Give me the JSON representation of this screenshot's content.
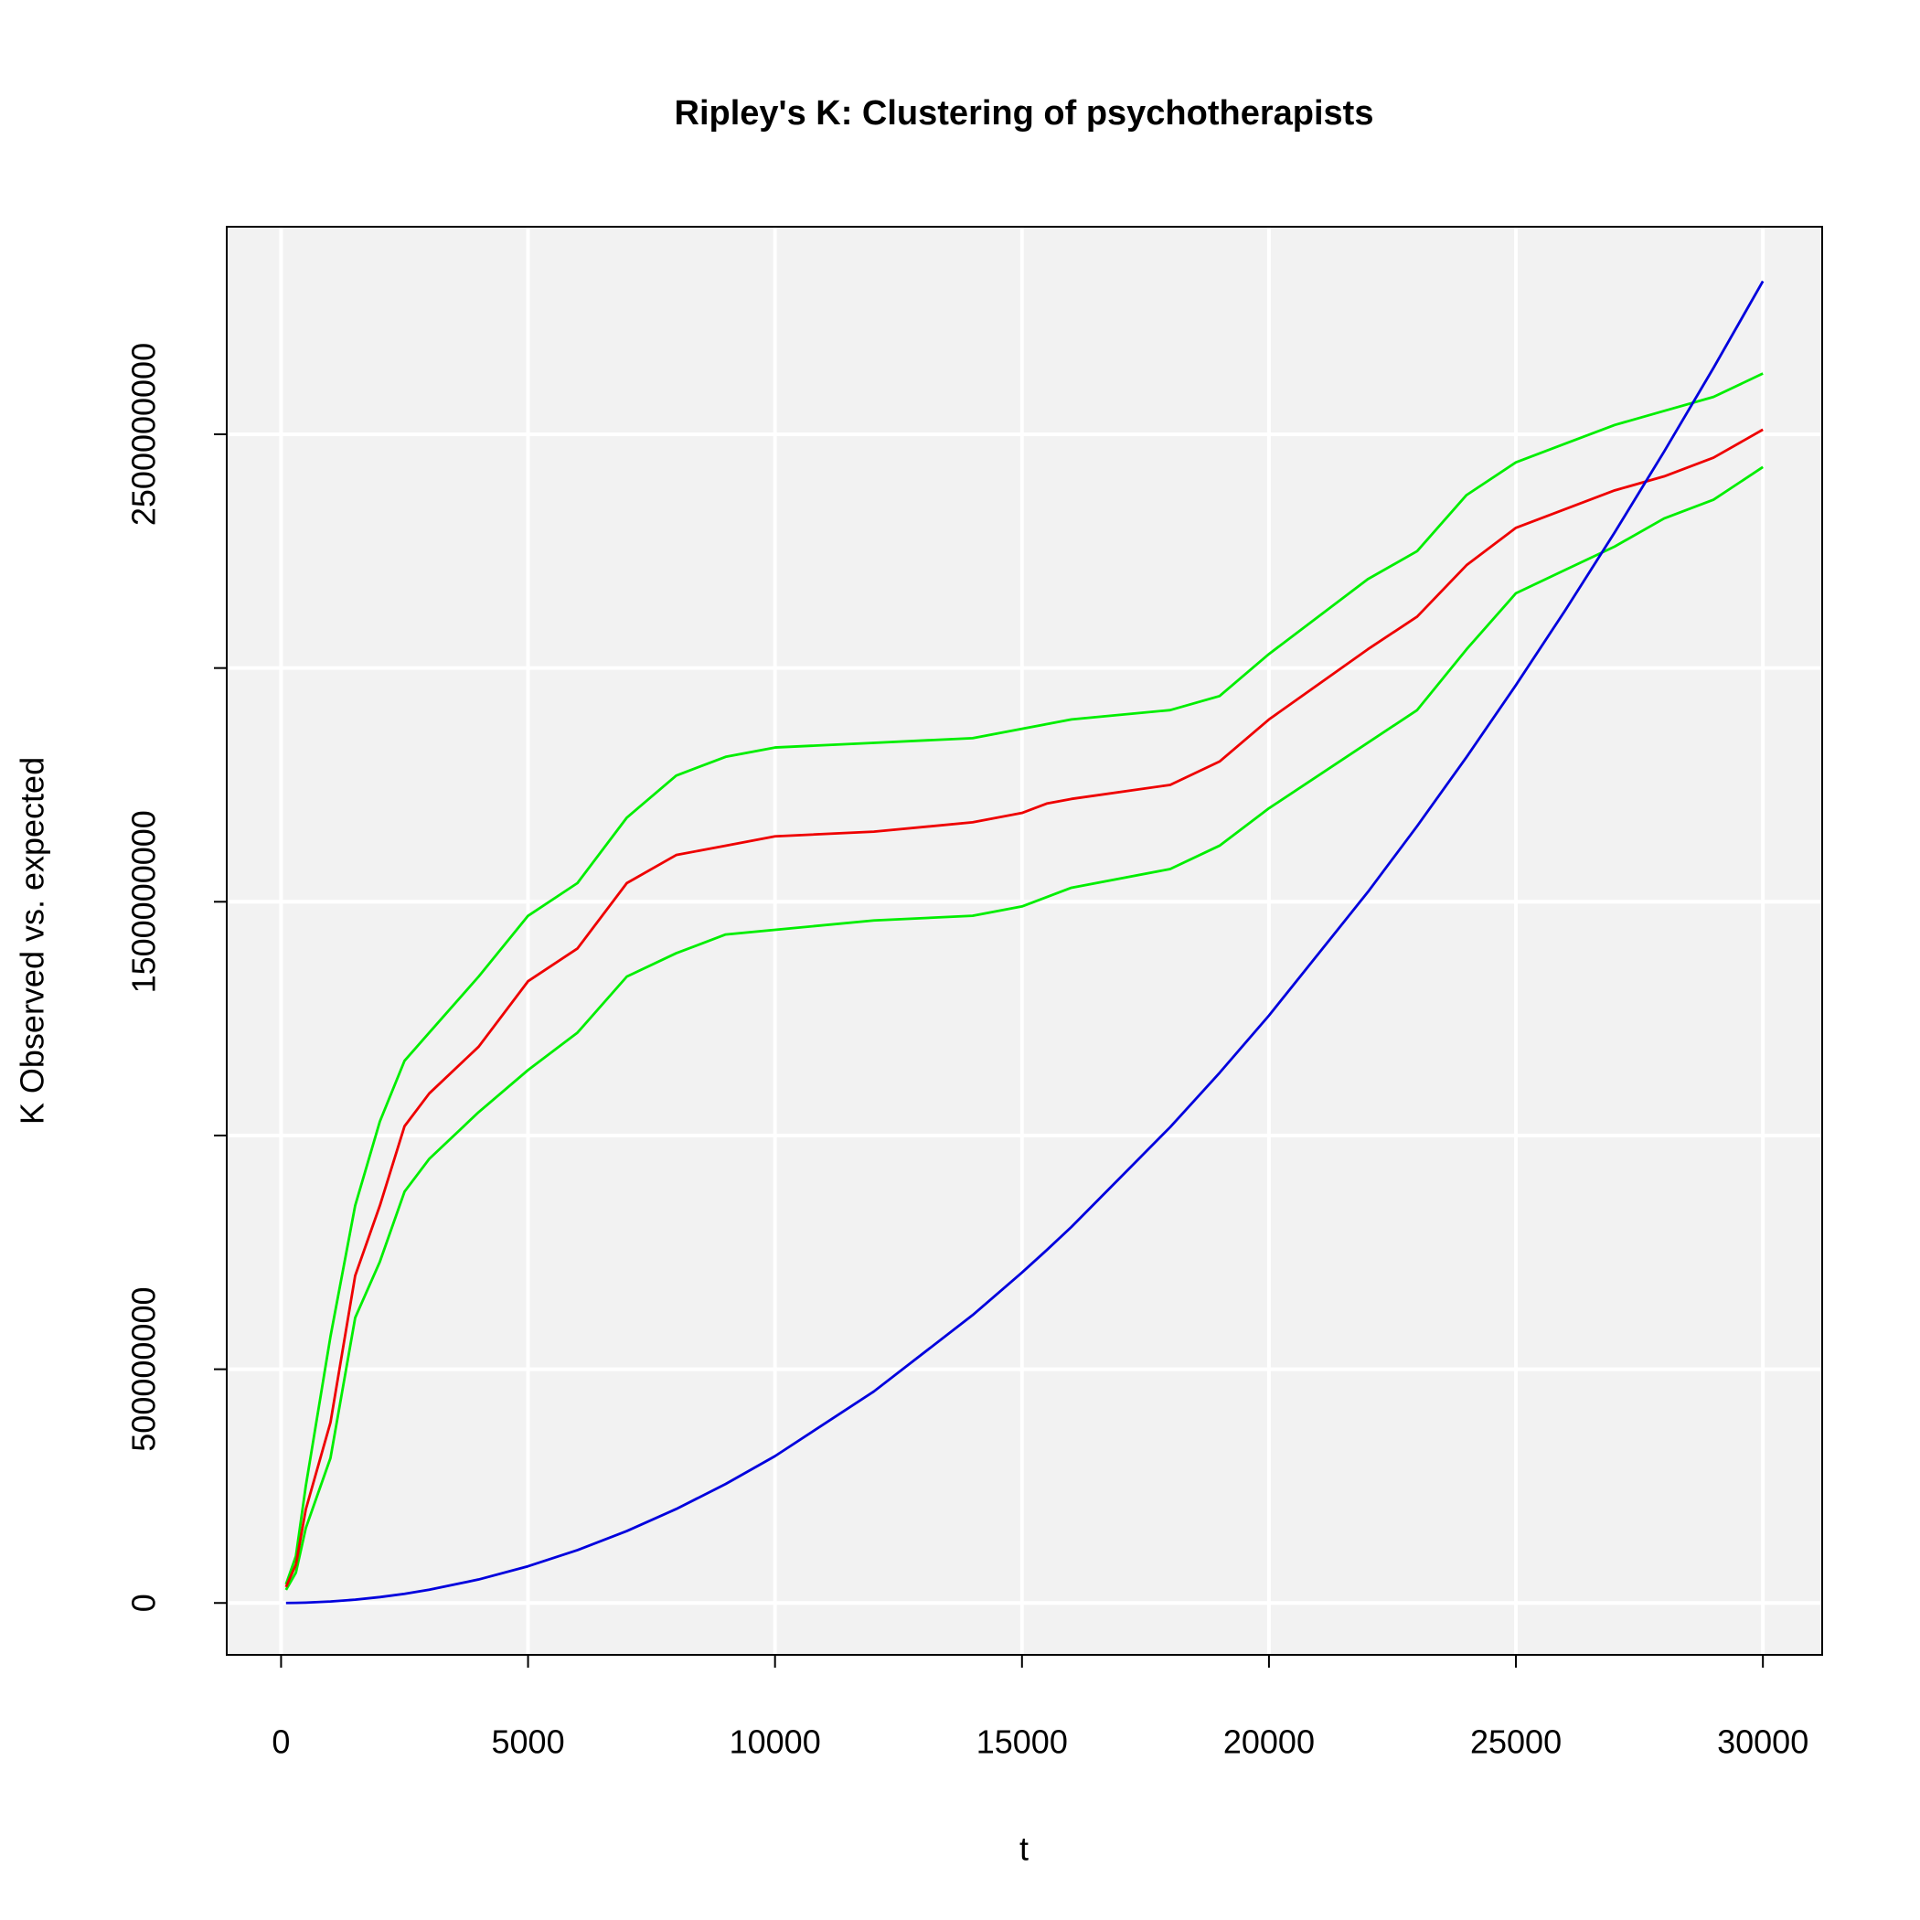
{
  "chart_data": {
    "type": "line",
    "title": "Ripley's K: Clustering of psychotherapists",
    "x_label": "t",
    "y_label": "K Observed vs. expected",
    "x": [
      100,
      300,
      500,
      1000,
      1500,
      2000,
      2500,
      3000,
      4000,
      5000,
      6000,
      7000,
      8000,
      9000,
      10000,
      12000,
      14000,
      15000,
      15500,
      16000,
      18000,
      19000,
      20000,
      22000,
      23000,
      24000,
      25000,
      26000,
      27000,
      28000,
      29000,
      30000
    ],
    "series": [
      {
        "color": "#00ee00",
        "values": [
          40000000,
          100000000,
          250000000,
          570000000,
          850000000,
          1030000000,
          1160000000,
          1220000000,
          1340000000,
          1470000000,
          1540000000,
          1680000000,
          1770000000,
          1810000000,
          1830000000,
          1840000000,
          1850000000,
          1870000000,
          1880000000,
          1890000000,
          1910000000,
          1940000000,
          2030000000,
          2190000000,
          2250000000,
          2370000000,
          2440000000,
          2480000000,
          2520000000,
          2550000000,
          2580000000,
          2630000000
        ]
      },
      {
        "color": "#00ee00",
        "values": [
          28000000,
          65000000,
          160000000,
          310000000,
          610000000,
          730000000,
          880000000,
          950000000,
          1050000000,
          1140000000,
          1220000000,
          1340000000,
          1390000000,
          1430000000,
          1440000000,
          1460000000,
          1470000000,
          1490000000,
          1510000000,
          1530000000,
          1570000000,
          1620000000,
          1700000000,
          1840000000,
          1910000000,
          2040000000,
          2160000000,
          2210000000,
          2260000000,
          2320000000,
          2360000000,
          2430000000
        ]
      },
      {
        "color": "#ee0000",
        "values": [
          34000000,
          82000000,
          200000000,
          386000000,
          700000000,
          850000000,
          1020000000,
          1090000000,
          1190000000,
          1330000000,
          1400000000,
          1540000000,
          1600000000,
          1620000000,
          1640000000,
          1650000000,
          1670000000,
          1690000000,
          1710000000,
          1720000000,
          1750000000,
          1800000000,
          1890000000,
          2040000000,
          2110000000,
          2220000000,
          2300000000,
          2340000000,
          2380000000,
          2410000000,
          2450000000,
          2510000000
        ]
      },
      {
        "color": "#0000dd",
        "values": [
          31416,
          282743,
          785398,
          3141593,
          7068583,
          12566371,
          19634954,
          28274334,
          50265482,
          78539816,
          113097336,
          153938040,
          201061930,
          254469005,
          314159265,
          452389342,
          615752160,
          706858347,
          754767635,
          804247719,
          1017876020,
          1134114948,
          1256637061,
          1520530844,
          1661902514,
          1809557368,
          1963495408,
          2123716634,
          2290221044,
          2463008640,
          2642079422,
          2827433388
        ]
      }
    ],
    "xlim": [
      -1100,
      31200
    ],
    "ylim": [
      -111000000,
      2944000000
    ],
    "xticks": [
      0,
      5000,
      10000,
      15000,
      20000,
      25000,
      30000
    ],
    "yticks": [
      0,
      500000000,
      {
        "value": 1000000000
      },
      1500000000,
      {
        "value": 2000000000
      },
      2500000000
    ],
    "grid": true,
    "grid_color": "#ffffff",
    "background": "#f2f2f2"
  }
}
